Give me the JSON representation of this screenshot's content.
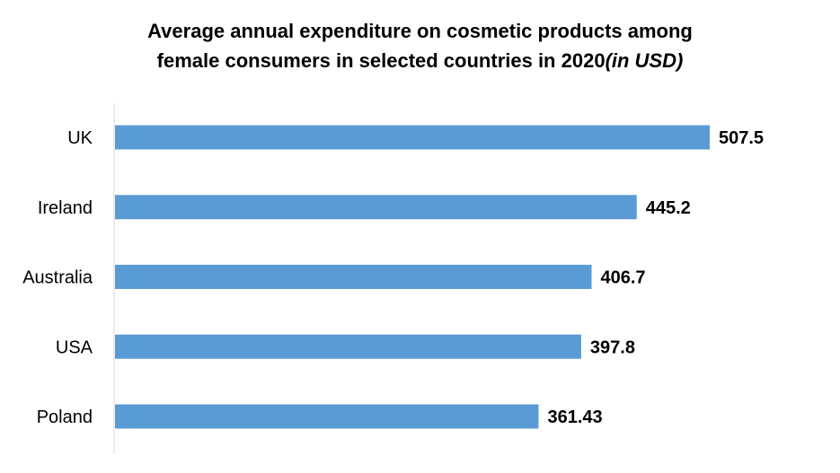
{
  "colors": {
    "bar": "#5b9bd5",
    "axis": "#d9d9d9",
    "text": "#000000",
    "background": "#ffffff"
  },
  "chart_data": {
    "type": "bar",
    "orientation": "horizontal",
    "title_line1": "Average annual expenditure on cosmetic products among",
    "title_line2": "female consumers in selected countries in 2020",
    "title_suffix": "(in USD)",
    "categories": [
      "UK",
      "Ireland",
      "Australia",
      "USA",
      "Poland"
    ],
    "values": [
      507.5,
      445.2,
      406.7,
      397.8,
      361.43
    ],
    "value_labels": [
      "507.5",
      "445.2",
      "406.7",
      "397.8",
      "361.43"
    ],
    "xlim": [
      0,
      507.5
    ],
    "xlabel": "",
    "ylabel": "",
    "grid": false,
    "legend": "none"
  }
}
